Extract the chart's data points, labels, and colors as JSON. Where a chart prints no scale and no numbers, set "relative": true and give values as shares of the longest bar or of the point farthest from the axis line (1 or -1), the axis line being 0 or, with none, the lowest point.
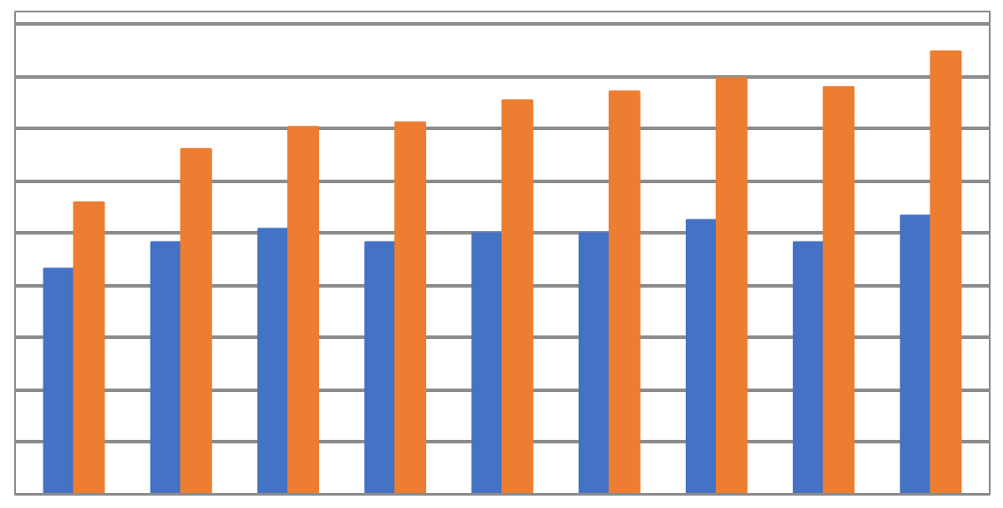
{
  "chart_data": {
    "type": "bar",
    "relative": true,
    "grid": "y",
    "categories": [
      null,
      null,
      null,
      null,
      null,
      null,
      null,
      null,
      null
    ],
    "series": [
      {
        "color": "#4472c4",
        "values": [
          0.51,
          0.57,
          0.6,
          0.57,
          0.59,
          0.59,
          0.62,
          0.57,
          0.63
        ]
      },
      {
        "color": "#ed7d31",
        "values": [
          0.66,
          0.78,
          0.83,
          0.84,
          0.89,
          0.91,
          0.94,
          0.92,
          1.0
        ]
      }
    ]
  }
}
